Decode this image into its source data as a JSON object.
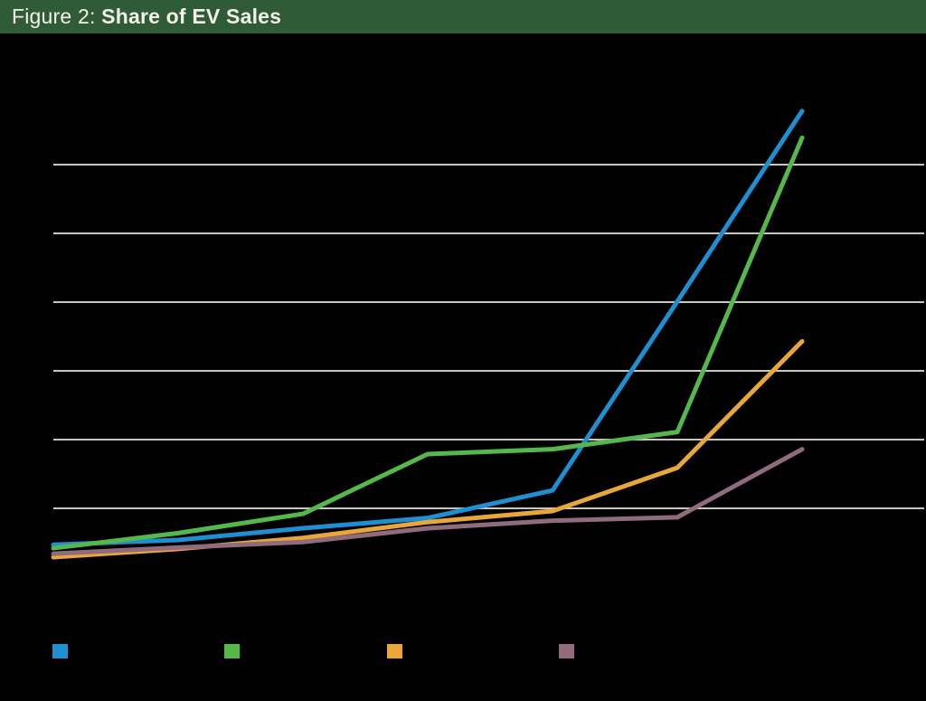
{
  "header": {
    "title_prefix": "Figure 2: ",
    "title_bold": "Share of EV Sales",
    "bg_color": "#2F5C36",
    "text_color": "#F2F1EA"
  },
  "page": {
    "background_color": "#000000"
  },
  "chart_data": {
    "type": "line",
    "title": "Share of EV Sales",
    "x": [
      1,
      2,
      3,
      4,
      5,
      6,
      7
    ],
    "x_tick_labels_visible": false,
    "y_tick_labels_visible": false,
    "y_unit": "gridline-units (axis labels not visible in image)",
    "ylim": [
      0,
      7.1
    ],
    "gridlines_y": [
      1,
      2,
      3,
      4,
      5,
      6
    ],
    "grid": true,
    "gridline_color": "#CBC5BF",
    "legend_position": "bottom",
    "series": [
      {
        "name": "series-blue",
        "color": "#1E8FD0",
        "values": [
          0.47,
          0.54,
          0.71,
          0.86,
          1.26,
          4.01,
          6.78
        ]
      },
      {
        "name": "series-green",
        "color": "#55B84A",
        "values": [
          0.42,
          0.64,
          0.92,
          1.79,
          1.86,
          2.11,
          6.39
        ]
      },
      {
        "name": "series-orange",
        "color": "#E9A63B",
        "values": [
          0.29,
          0.41,
          0.57,
          0.8,
          0.96,
          1.59,
          3.43
        ]
      },
      {
        "name": "series-purple",
        "color": "#8F6B7D",
        "values": [
          0.34,
          0.43,
          0.51,
          0.71,
          0.82,
          0.87,
          1.86
        ]
      }
    ]
  },
  "legend": {
    "items": [
      {
        "name": "blue",
        "color": "#1E8FD0",
        "label": ""
      },
      {
        "name": "green",
        "color": "#55B84A",
        "label": ""
      },
      {
        "name": "orange",
        "color": "#E9A63B",
        "label": ""
      },
      {
        "name": "purple",
        "color": "#8F6B7D",
        "label": ""
      }
    ]
  }
}
